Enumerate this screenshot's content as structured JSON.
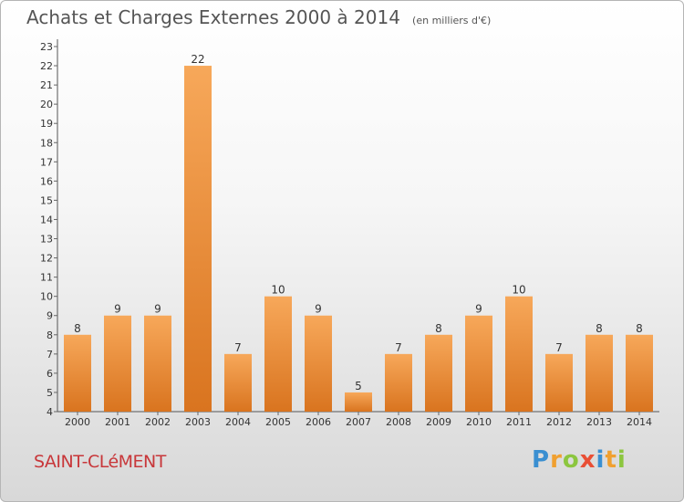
{
  "title": "Achats et Charges Externes 2000 à 2014",
  "unit": "(en milliers d'€)",
  "commune": "SAINT-CLéMENT",
  "brand": {
    "letters": [
      "P",
      "r",
      "o",
      "x",
      "i",
      "t",
      "i"
    ],
    "colors": [
      "#3a8fd1",
      "#f0a030",
      "#8cc63f",
      "#e94f35",
      "#3a8fd1",
      "#f0a030",
      "#8cc63f"
    ]
  },
  "colors": {
    "bar_light": "#f7a85a",
    "bar_dark": "#d9741f",
    "axis": "#555555",
    "grid_tick": "#666666"
  },
  "chart_data": {
    "type": "bar",
    "categories": [
      "2000",
      "2001",
      "2002",
      "2003",
      "2004",
      "2005",
      "2006",
      "2007",
      "2008",
      "2009",
      "2010",
      "2011",
      "2012",
      "2013",
      "2014"
    ],
    "values": [
      8,
      9,
      9,
      22,
      7,
      10,
      9,
      5,
      7,
      8,
      9,
      10,
      7,
      8,
      8
    ],
    "ylim": [
      4,
      23
    ],
    "yticks": [
      4,
      5,
      6,
      7,
      8,
      9,
      10,
      11,
      12,
      13,
      14,
      15,
      16,
      17,
      18,
      19,
      20,
      21,
      22,
      23
    ],
    "xlabel": "",
    "ylabel": "",
    "grid": false
  }
}
